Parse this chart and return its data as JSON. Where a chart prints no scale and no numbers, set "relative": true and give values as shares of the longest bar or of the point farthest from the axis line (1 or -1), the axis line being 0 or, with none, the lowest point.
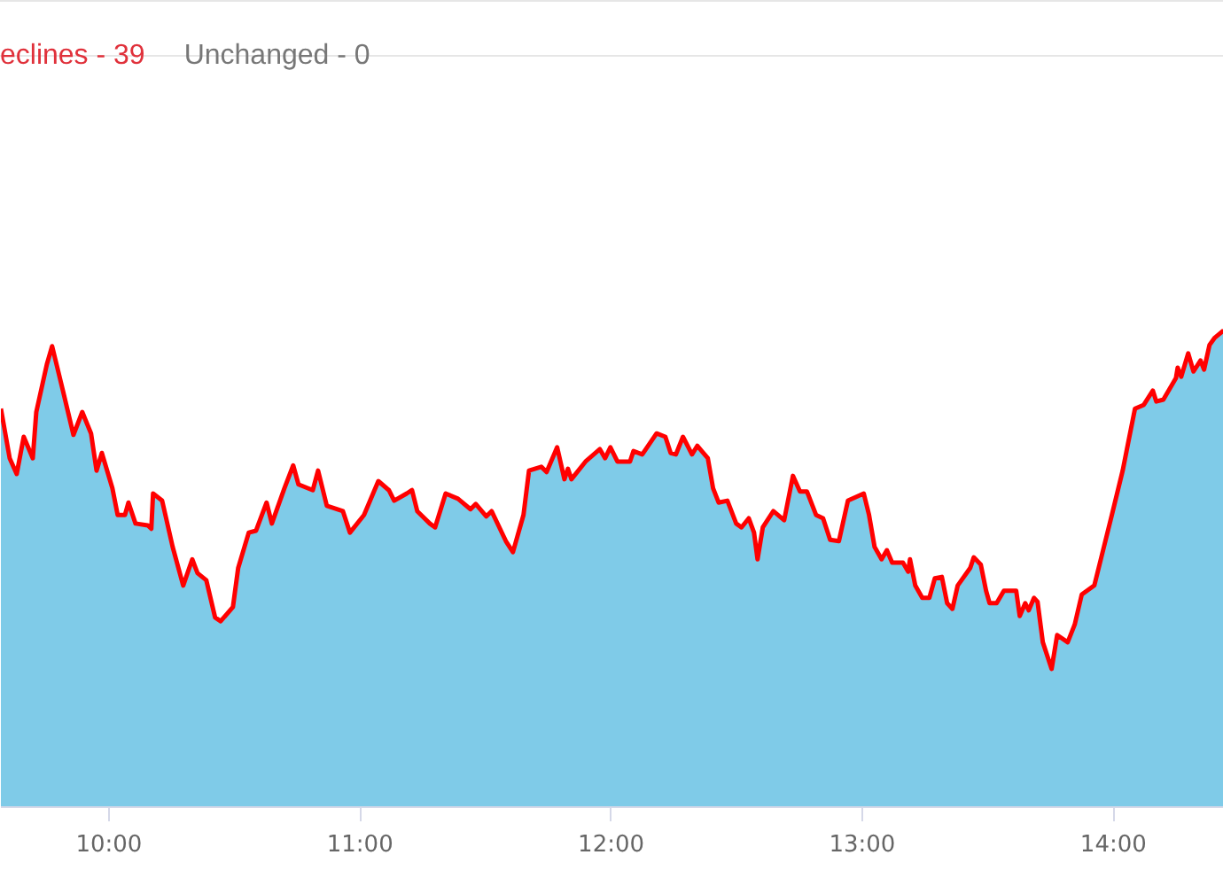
{
  "chart_data": {
    "type": "area",
    "relative": true,
    "annotations": [
      "eclines - 39",
      "Unchanged - 0"
    ],
    "xlim": [
      9.57,
      14.44
    ],
    "xticks": [
      {
        "value": 10,
        "label": "10:00"
      },
      {
        "value": 11,
        "label": "11:00"
      },
      {
        "value": 12,
        "label": "12:00"
      },
      {
        "value": 13,
        "label": "13:00"
      },
      {
        "value": 14,
        "label": "14:00"
      }
    ],
    "grid": false,
    "series": [
      {
        "color": "#7fcbe8",
        "x": [
          9.57,
          9.605,
          9.633,
          9.661,
          9.697,
          9.711,
          9.753,
          9.774,
          9.817,
          9.859,
          9.894,
          9.929,
          9.951,
          9.972,
          10.014,
          10.035,
          10.064,
          10.078,
          10.106,
          10.155,
          10.169,
          10.176,
          10.212,
          10.254,
          10.296,
          10.332,
          10.353,
          10.388,
          10.423,
          10.445,
          10.494,
          10.515,
          10.557,
          10.586,
          10.628,
          10.649,
          10.699,
          10.734,
          10.755,
          10.812,
          10.833,
          10.868,
          10.932,
          10.96,
          11.016,
          11.073,
          11.115,
          11.136,
          11.186,
          11.207,
          11.228,
          11.278,
          11.299,
          11.341,
          11.39,
          11.44,
          11.461,
          11.503,
          11.524,
          11.581,
          11.609,
          11.651,
          11.673,
          11.722,
          11.743,
          11.785,
          11.814,
          11.828,
          11.842,
          11.898,
          11.955,
          11.976,
          11.997,
          12.025,
          12.075,
          12.089,
          12.124,
          12.181,
          12.216,
          12.237,
          12.258,
          12.286,
          12.322,
          12.343,
          12.385,
          12.406,
          12.428,
          12.463,
          12.498,
          12.519,
          12.548,
          12.569,
          12.583,
          12.604,
          12.646,
          12.689,
          12.724,
          12.752,
          12.78,
          12.816,
          12.844,
          12.872,
          12.907,
          12.943,
          13.006,
          13.027,
          13.049,
          13.077,
          13.098,
          13.119,
          13.162,
          13.183,
          13.19,
          13.211,
          13.239,
          13.267,
          13.289,
          13.317,
          13.338,
          13.359,
          13.38,
          13.43,
          13.444,
          13.472,
          13.493,
          13.507,
          13.535,
          13.564,
          13.613,
          13.627,
          13.649,
          13.663,
          13.684,
          13.698,
          13.719,
          13.754,
          13.776,
          13.818,
          13.846,
          13.874,
          13.924,
          13.959,
          13.994,
          14.037,
          14.058,
          14.086,
          14.121,
          14.157,
          14.171,
          14.199,
          14.249,
          14.256,
          14.27,
          14.298,
          14.319,
          14.347,
          14.361,
          14.383,
          14.404,
          14.439
        ],
        "values": [
          0.836,
          0.732,
          0.699,
          0.777,
          0.732,
          0.829,
          0.929,
          0.967,
          0.874,
          0.781,
          0.829,
          0.784,
          0.706,
          0.743,
          0.669,
          0.613,
          0.613,
          0.639,
          0.595,
          0.591,
          0.584,
          0.658,
          0.643,
          0.546,
          0.465,
          0.52,
          0.491,
          0.476,
          0.398,
          0.39,
          0.42,
          0.502,
          0.576,
          0.58,
          0.639,
          0.595,
          0.669,
          0.717,
          0.677,
          0.665,
          0.706,
          0.632,
          0.621,
          0.576,
          0.613,
          0.684,
          0.665,
          0.643,
          0.658,
          0.665,
          0.621,
          0.595,
          0.587,
          0.658,
          0.647,
          0.625,
          0.636,
          0.61,
          0.621,
          0.558,
          0.535,
          0.613,
          0.706,
          0.714,
          0.703,
          0.755,
          0.688,
          0.71,
          0.688,
          0.725,
          0.751,
          0.732,
          0.755,
          0.725,
          0.725,
          0.747,
          0.74,
          0.784,
          0.777,
          0.743,
          0.74,
          0.777,
          0.74,
          0.758,
          0.732,
          0.669,
          0.639,
          0.643,
          0.595,
          0.587,
          0.606,
          0.576,
          0.52,
          0.587,
          0.621,
          0.602,
          0.695,
          0.662,
          0.662,
          0.613,
          0.606,
          0.561,
          0.558,
          0.643,
          0.658,
          0.613,
          0.546,
          0.52,
          0.539,
          0.513,
          0.513,
          0.494,
          0.52,
          0.465,
          0.439,
          0.439,
          0.48,
          0.483,
          0.428,
          0.416,
          0.465,
          0.502,
          0.524,
          0.509,
          0.454,
          0.428,
          0.428,
          0.454,
          0.454,
          0.401,
          0.428,
          0.413,
          0.439,
          0.431,
          0.346,
          0.29,
          0.361,
          0.346,
          0.383,
          0.446,
          0.465,
          0.539,
          0.613,
          0.706,
          0.762,
          0.836,
          0.844,
          0.874,
          0.851,
          0.855,
          0.9,
          0.922,
          0.903,
          0.952,
          0.914,
          0.937,
          0.918,
          0.97,
          0.985,
          1.0
        ]
      },
      {
        "type": "line",
        "color": "#ff0000",
        "x": [
          9.57,
          9.605,
          9.633,
          9.661,
          9.697,
          9.711,
          9.753,
          9.774,
          9.817,
          9.859,
          9.894,
          9.929,
          9.951,
          9.972,
          10.014,
          10.035,
          10.064,
          10.078,
          10.106,
          10.155,
          10.169,
          10.176,
          10.212,
          10.254,
          10.296,
          10.332,
          10.353,
          10.388,
          10.423,
          10.445,
          10.494,
          10.515,
          10.557,
          10.586,
          10.628,
          10.649,
          10.699,
          10.734,
          10.755,
          10.812,
          10.833,
          10.868,
          10.932,
          10.96,
          11.016,
          11.073,
          11.115,
          11.136,
          11.186,
          11.207,
          11.228,
          11.278,
          11.299,
          11.341,
          11.39,
          11.44,
          11.461,
          11.503,
          11.524,
          11.581,
          11.609,
          11.651,
          11.673,
          11.722,
          11.743,
          11.785,
          11.814,
          11.828,
          11.842,
          11.898,
          11.955,
          11.976,
          11.997,
          12.025,
          12.075,
          12.089,
          12.124,
          12.181,
          12.216,
          12.237,
          12.258,
          12.286,
          12.322,
          12.343,
          12.385,
          12.406,
          12.428,
          12.463,
          12.498,
          12.519,
          12.548,
          12.569,
          12.583,
          12.604,
          12.646,
          12.689,
          12.724,
          12.752,
          12.78,
          12.816,
          12.844,
          12.872,
          12.907,
          12.943,
          13.006,
          13.027,
          13.049,
          13.077,
          13.098,
          13.119,
          13.162,
          13.183,
          13.19,
          13.211,
          13.239,
          13.267,
          13.289,
          13.317,
          13.338,
          13.359,
          13.38,
          13.43,
          13.444,
          13.472,
          13.493,
          13.507,
          13.535,
          13.564,
          13.613,
          13.627,
          13.649,
          13.663,
          13.684,
          13.698,
          13.719,
          13.754,
          13.776,
          13.818,
          13.846,
          13.874,
          13.924,
          13.959,
          13.994,
          14.037,
          14.058,
          14.086,
          14.121,
          14.157,
          14.171,
          14.199,
          14.249,
          14.256,
          14.27,
          14.298,
          14.319,
          14.347,
          14.361,
          14.383,
          14.404,
          14.439
        ],
        "values": [
          0.836,
          0.732,
          0.699,
          0.777,
          0.732,
          0.829,
          0.929,
          0.967,
          0.874,
          0.781,
          0.829,
          0.784,
          0.706,
          0.743,
          0.669,
          0.613,
          0.613,
          0.639,
          0.595,
          0.591,
          0.584,
          0.658,
          0.643,
          0.546,
          0.465,
          0.52,
          0.491,
          0.476,
          0.398,
          0.39,
          0.42,
          0.502,
          0.576,
          0.58,
          0.639,
          0.595,
          0.669,
          0.717,
          0.677,
          0.665,
          0.706,
          0.632,
          0.621,
          0.576,
          0.613,
          0.684,
          0.665,
          0.643,
          0.658,
          0.665,
          0.621,
          0.595,
          0.587,
          0.658,
          0.647,
          0.625,
          0.636,
          0.61,
          0.621,
          0.558,
          0.535,
          0.613,
          0.706,
          0.714,
          0.703,
          0.755,
          0.688,
          0.71,
          0.688,
          0.725,
          0.751,
          0.732,
          0.755,
          0.725,
          0.725,
          0.747,
          0.74,
          0.784,
          0.777,
          0.743,
          0.74,
          0.777,
          0.74,
          0.758,
          0.732,
          0.669,
          0.639,
          0.643,
          0.595,
          0.587,
          0.606,
          0.576,
          0.52,
          0.587,
          0.621,
          0.602,
          0.695,
          0.662,
          0.662,
          0.613,
          0.606,
          0.561,
          0.558,
          0.643,
          0.658,
          0.613,
          0.546,
          0.52,
          0.539,
          0.513,
          0.513,
          0.494,
          0.52,
          0.465,
          0.439,
          0.439,
          0.48,
          0.483,
          0.428,
          0.416,
          0.465,
          0.502,
          0.524,
          0.509,
          0.454,
          0.428,
          0.428,
          0.454,
          0.454,
          0.401,
          0.428,
          0.413,
          0.439,
          0.431,
          0.346,
          0.29,
          0.361,
          0.346,
          0.383,
          0.446,
          0.465,
          0.539,
          0.613,
          0.706,
          0.762,
          0.836,
          0.844,
          0.874,
          0.851,
          0.855,
          0.9,
          0.922,
          0.903,
          0.952,
          0.914,
          0.937,
          0.918,
          0.97,
          0.985,
          1.0
        ]
      }
    ]
  }
}
